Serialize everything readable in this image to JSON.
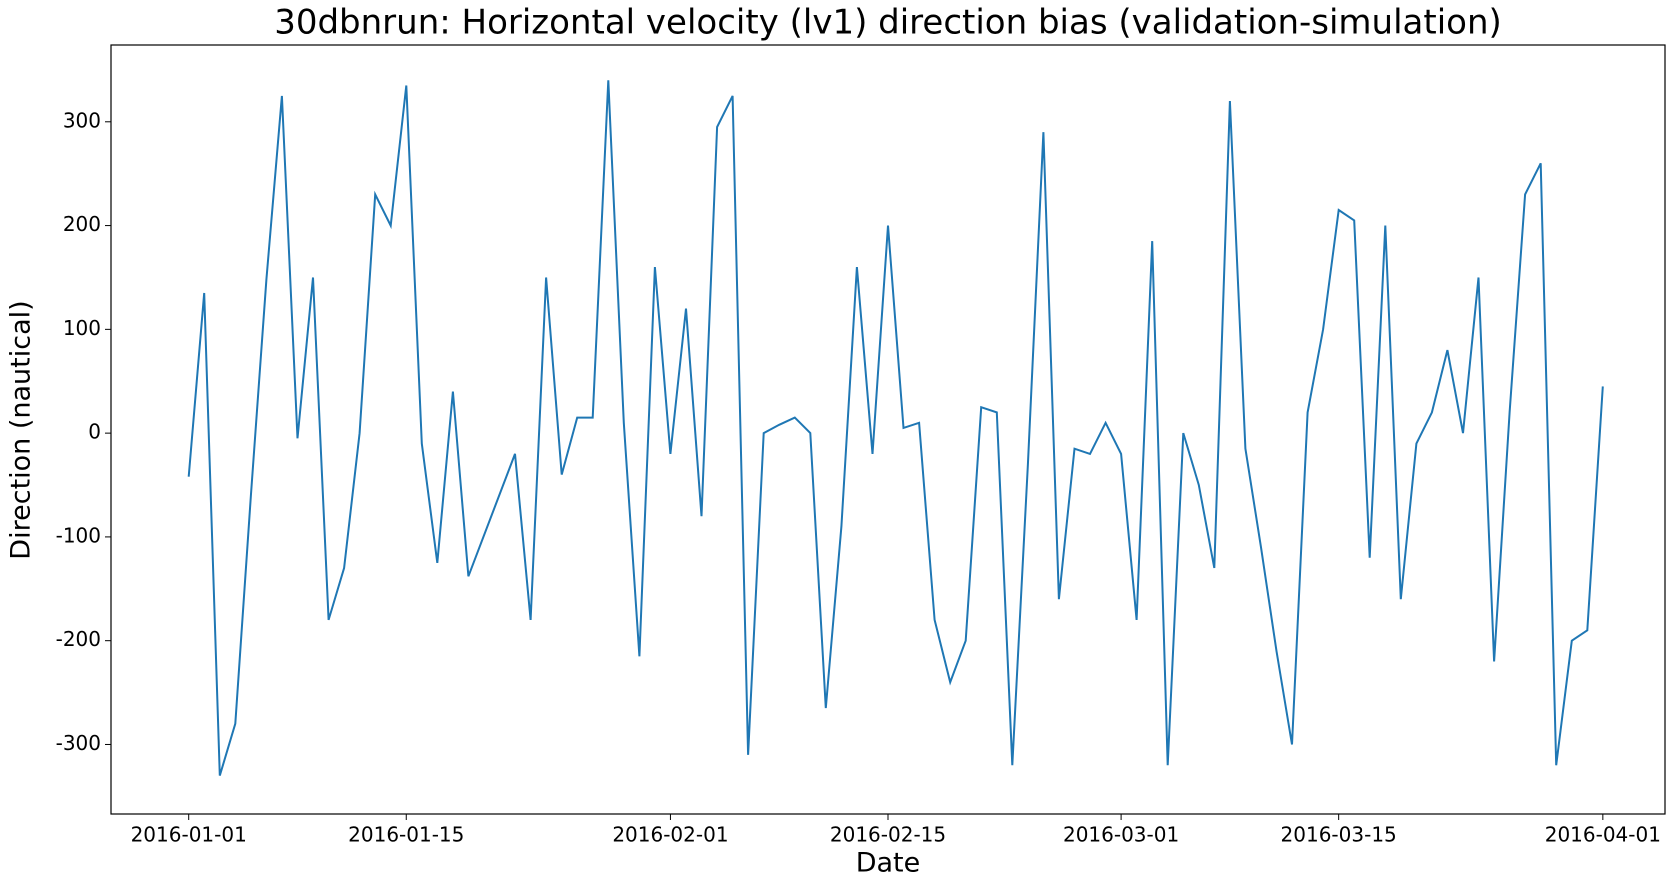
{
  "chart_data": {
    "type": "line",
    "title": "30dbnrun: Horizontal velocity (lv1) direction bias (validation-simulation)",
    "x_label": "Date",
    "y_label": "Direction (nautical)",
    "x": [
      "2016-01-01",
      "2016-01-02",
      "2016-01-03",
      "2016-01-04",
      "2016-01-05",
      "2016-01-06",
      "2016-01-07",
      "2016-01-08",
      "2016-01-09",
      "2016-01-10",
      "2016-01-11",
      "2016-01-12",
      "2016-01-13",
      "2016-01-14",
      "2016-01-15",
      "2016-01-16",
      "2016-01-17",
      "2016-01-18",
      "2016-01-19",
      "2016-01-22",
      "2016-01-23",
      "2016-01-24",
      "2016-01-25",
      "2016-01-26",
      "2016-01-27",
      "2016-01-28",
      "2016-01-29",
      "2016-01-30",
      "2016-01-31",
      "2016-02-01",
      "2016-02-02",
      "2016-02-03",
      "2016-02-04",
      "2016-02-05",
      "2016-02-06",
      "2016-02-07",
      "2016-02-08",
      "2016-02-09",
      "2016-02-10",
      "2016-02-11",
      "2016-02-12",
      "2016-02-13",
      "2016-02-14",
      "2016-02-15",
      "2016-02-16",
      "2016-02-17",
      "2016-02-18",
      "2016-02-19",
      "2016-02-20",
      "2016-02-21",
      "2016-02-22",
      "2016-02-23",
      "2016-02-24",
      "2016-02-25",
      "2016-02-26",
      "2016-02-27",
      "2016-02-28",
      "2016-02-29",
      "2016-03-01",
      "2016-03-02",
      "2016-03-03",
      "2016-03-04",
      "2016-03-05",
      "2016-03-06",
      "2016-03-07",
      "2016-03-08",
      "2016-03-09",
      "2016-03-10",
      "2016-03-11",
      "2016-03-12",
      "2016-03-13",
      "2016-03-14",
      "2016-03-15",
      "2016-03-16",
      "2016-03-17",
      "2016-03-18",
      "2016-03-19",
      "2016-03-20",
      "2016-03-21",
      "2016-03-22",
      "2016-03-23",
      "2016-03-24",
      "2016-03-25",
      "2016-03-26",
      "2016-03-27",
      "2016-03-28",
      "2016-03-29",
      "2016-03-30",
      "2016-03-31",
      "2016-04-01"
    ],
    "values": [
      -42,
      135,
      -330,
      -280,
      -60,
      148,
      325,
      -5,
      150,
      -180,
      -130,
      0,
      230,
      200,
      335,
      -10,
      -125,
      40,
      -138,
      -20,
      -180,
      150,
      -40,
      15,
      15,
      340,
      10,
      -215,
      160,
      -20,
      120,
      -80,
      295,
      325,
      -310,
      0,
      8,
      15,
      0,
      -265,
      -90,
      160,
      -20,
      200,
      5,
      10,
      -180,
      -240,
      -200,
      25,
      20,
      -320,
      -30,
      290,
      -160,
      -15,
      -20,
      10,
      -20,
      -180,
      185,
      -320,
      0,
      -50,
      -130,
      320,
      -15,
      -110,
      -210,
      -300,
      20,
      100,
      215,
      205,
      -120,
      200,
      -160,
      -10,
      20,
      80,
      0,
      150,
      -220,
      20,
      230,
      260,
      -320,
      -200,
      -190,
      45
    ],
    "color": "#1f77b4",
    "xlim": [
      "2015-12-27",
      "2016-04-05"
    ],
    "xticks": [
      "2016-01-01",
      "2016-01-15",
      "2016-02-01",
      "2016-02-15",
      "2016-03-01",
      "2016-03-15",
      "2016-04-01"
    ],
    "ylim": [
      -367,
      374
    ],
    "yticks": [
      -300,
      -200,
      -100,
      0,
      100,
      200,
      300
    ]
  }
}
